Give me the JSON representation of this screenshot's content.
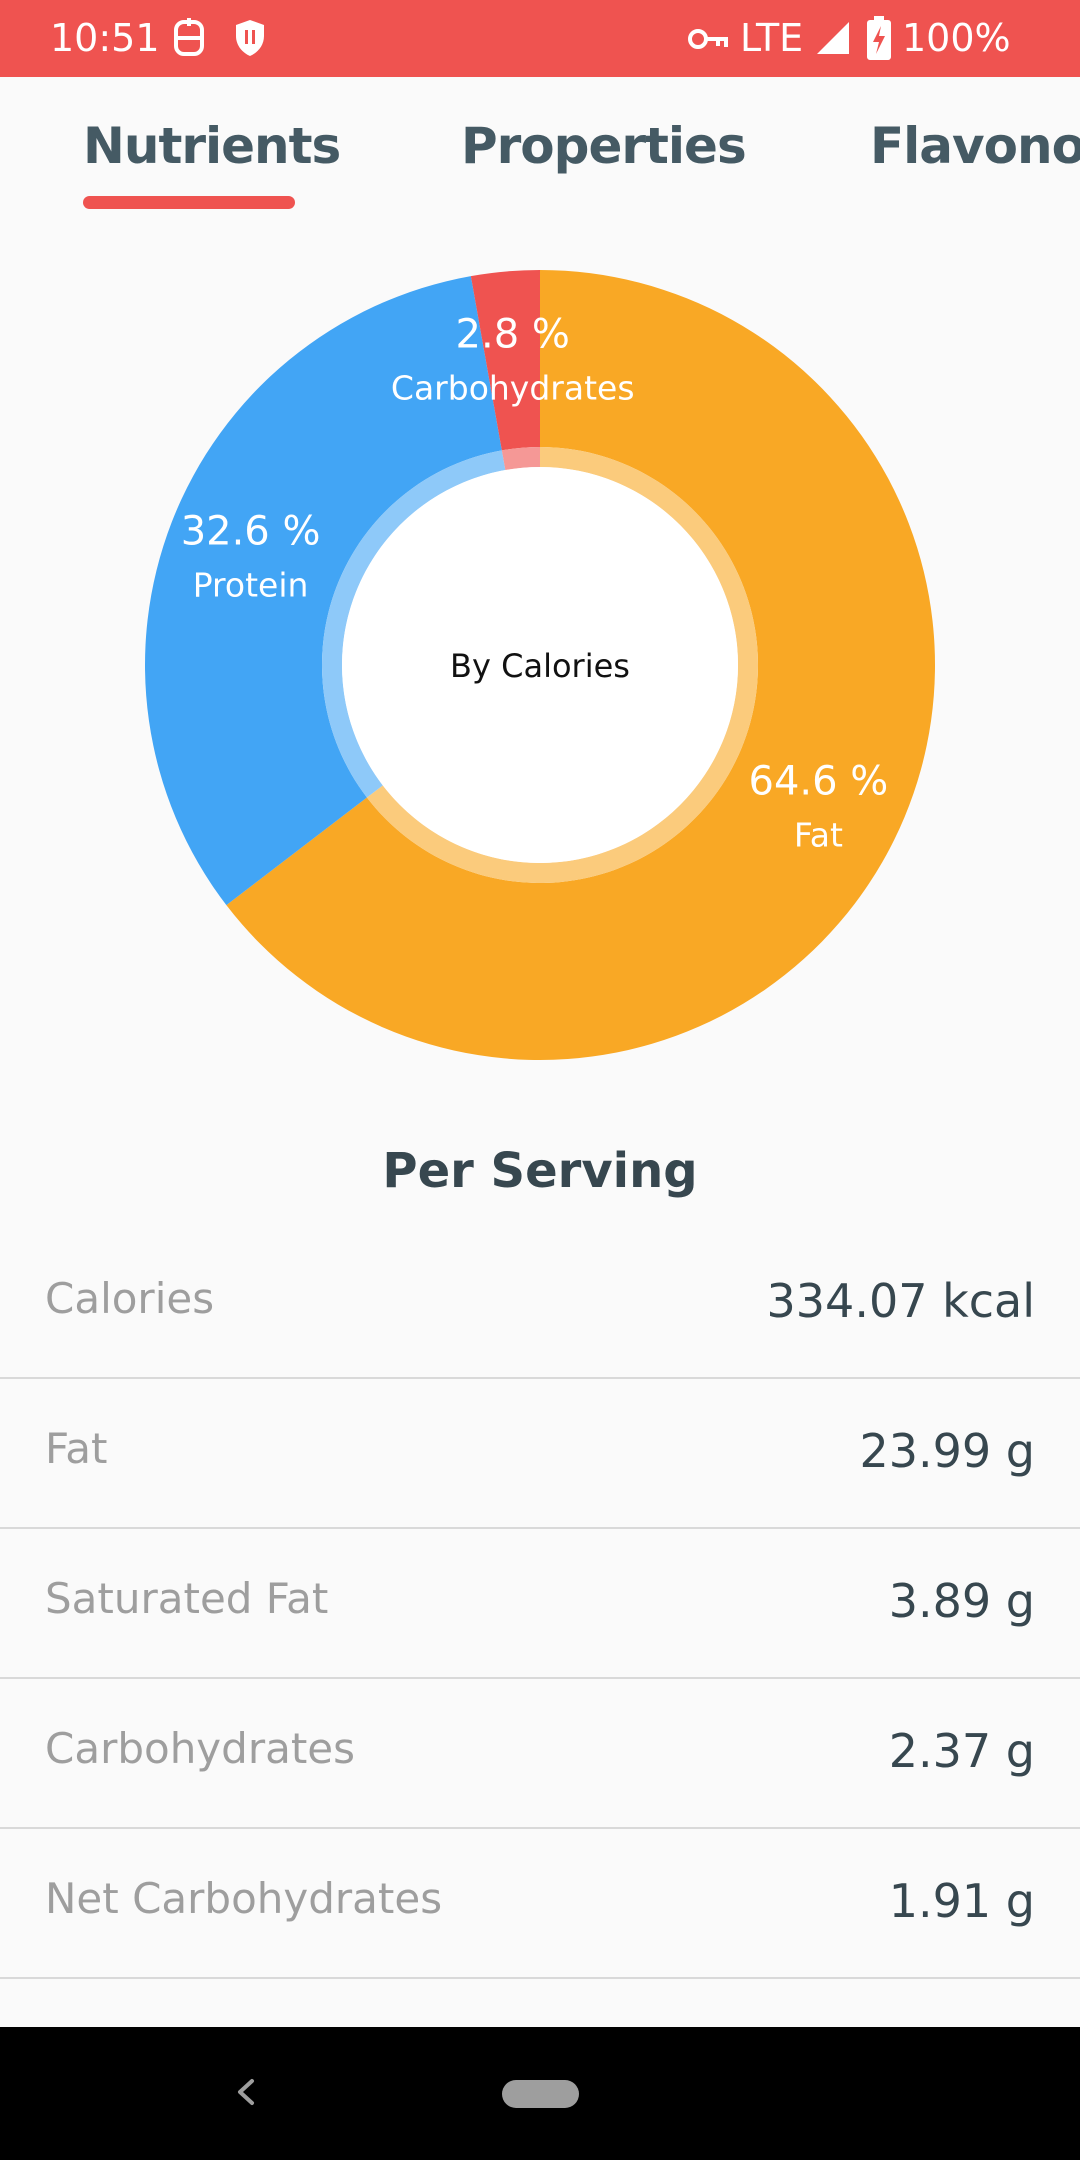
{
  "status_bar": {
    "time": "10:51",
    "network": "LTE",
    "battery": "100%",
    "background_color": "#ef5350",
    "icons": [
      "notification-app-icon",
      "shield-icon",
      "vpn-key-icon",
      "signal-icon",
      "battery-charging-icon"
    ]
  },
  "tabs": [
    {
      "label": "Nutrients",
      "selected": true
    },
    {
      "label": "Properties",
      "selected": false
    },
    {
      "label": "Flavonoids",
      "selected": false
    }
  ],
  "chart_data": {
    "type": "pie",
    "title": "By Calories",
    "center_label": "By Calories",
    "unit": "%",
    "slices": [
      {
        "label": "Fat",
        "value": 64.6,
        "display": "64.6 %",
        "color": "#f9a825"
      },
      {
        "label": "Protein",
        "value": 32.6,
        "display": "32.6 %",
        "color": "#42a5f5"
      },
      {
        "label": "Carbohydrates",
        "value": 2.8,
        "display": "2.8 %",
        "color": "#ef5350"
      }
    ],
    "legend": "none"
  },
  "per_serving": {
    "heading": "Per Serving",
    "rows": [
      {
        "name": "Calories",
        "value": "334.07 kcal"
      },
      {
        "name": "Fat",
        "value": "23.99 g"
      },
      {
        "name": "Saturated Fat",
        "value": "3.89 g"
      },
      {
        "name": "Carbohydrates",
        "value": "2.37 g"
      },
      {
        "name": "Net Carbohydrates",
        "value": "1.91 g"
      }
    ]
  },
  "nav_bar": {
    "icons": [
      "back-icon",
      "home-pill"
    ]
  }
}
